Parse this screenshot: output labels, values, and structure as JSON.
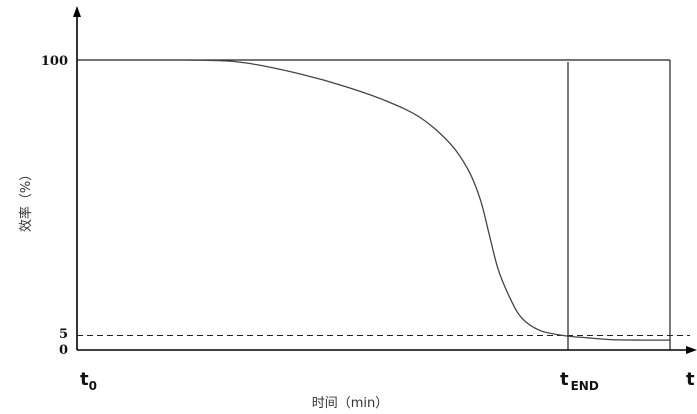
{
  "chart_data": {
    "type": "line",
    "ylabel": "效率（%）",
    "xlabel": "时间（min）",
    "y_ticks": [
      "100",
      "5",
      "0"
    ],
    "y_tick_values": [
      100,
      5,
      0
    ],
    "x_marks": {
      "start": {
        "main": "t",
        "sub": "0"
      },
      "end": {
        "main": "t",
        "sub": "END"
      },
      "axis_end": "t"
    },
    "threshold": 5,
    "ylim": [
      0,
      100
    ],
    "grid": false,
    "series": [
      {
        "style": "solid",
        "x": [
          0.18,
          0.25,
          0.3,
          0.38,
          0.45,
          0.52,
          0.58,
          0.63,
          0.66,
          0.68,
          0.695,
          0.71,
          0.73,
          0.75,
          0.78,
          0.82,
          0.86,
          0.9,
          0.95,
          1.0
        ],
        "y": [
          100,
          99.7,
          98.5,
          95,
          91,
          86,
          80,
          71,
          62,
          52,
          40,
          28,
          18,
          11,
          6.8,
          5,
          4.2,
          3.6,
          3.4,
          3.4
        ]
      }
    ]
  }
}
